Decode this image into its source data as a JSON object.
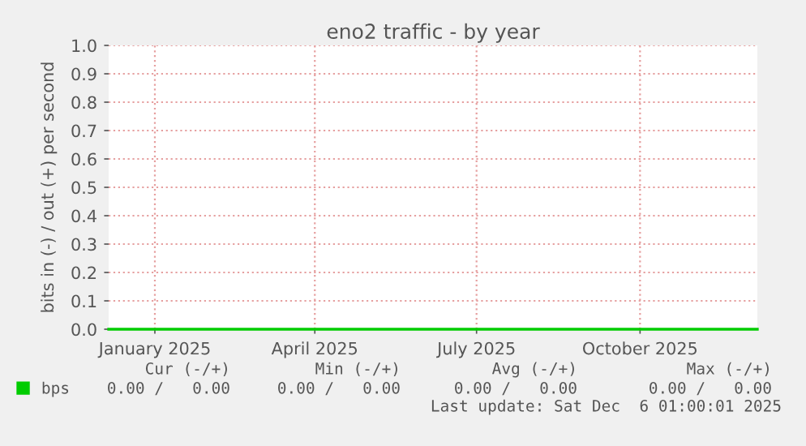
{
  "chart_data": {
    "type": "line",
    "title": "eno2 traffic - by year",
    "ylabel": "bits in (-) / out (+) per second",
    "x": [
      "2024-12-06",
      "2025-12-06"
    ],
    "series": [
      {
        "name": "bps",
        "color": "#00cc00",
        "values": [
          0,
          0
        ]
      }
    ],
    "xlim": [
      "2024-12-06",
      "2025-12-06"
    ],
    "xticks": [
      {
        "value": "2025-01-01",
        "label": "January 2025"
      },
      {
        "value": "2025-04-01",
        "label": "April 2025"
      },
      {
        "value": "2025-07-01",
        "label": "July 2025"
      },
      {
        "value": "2025-10-01",
        "label": "October 2025"
      }
    ],
    "ylim": [
      0,
      1.0
    ],
    "yticks": [
      {
        "value": 0,
        "label": "0.0"
      },
      0.1,
      0.2,
      0.3,
      0.4,
      0.5,
      0.6,
      0.7,
      0.8,
      0.9,
      {
        "value": 1,
        "label": "1.0"
      }
    ],
    "grid": true,
    "legend": "bottom left",
    "annotations": [
      "Cur (-/+)",
      "Min (-/+)",
      "Avg (-/+)",
      "Max (-/+)",
      "0.00 /   0.00",
      "0.00 /   0.00",
      "0.00 /   0.00",
      "0.00 /   0.00",
      "Last update: Sat Dec  6 01:00:01 2025"
    ]
  }
}
